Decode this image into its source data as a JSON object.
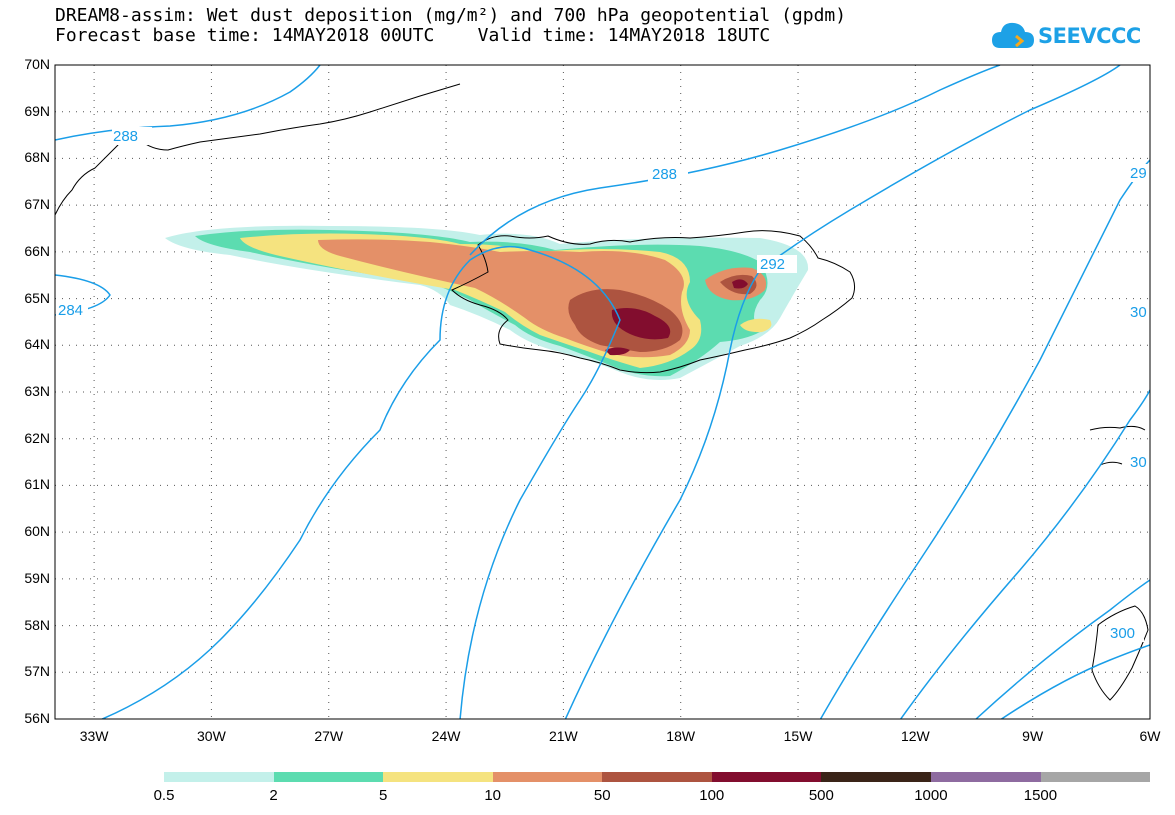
{
  "title": {
    "line1": "DREAM8-assim: Wet dust deposition (mg/m²) and 700 hPa geopotential (gpdm)",
    "line2": "Forecast base time: 14MAY2018 00UTC    Valid time: 14MAY2018 18UTC"
  },
  "logo": {
    "text": "SEEVCCC",
    "icon": "cloud-icon",
    "color": "#1da1e6"
  },
  "axes": {
    "lat_labels": [
      "70N",
      "69N",
      "68N",
      "67N",
      "66N",
      "65N",
      "64N",
      "63N",
      "62N",
      "61N",
      "60N",
      "59N",
      "58N",
      "57N",
      "56N"
    ],
    "lon_labels": [
      "33W",
      "30W",
      "27W",
      "24W",
      "21W",
      "18W",
      "15W",
      "12W",
      "9W",
      "6W"
    ],
    "lat_range": [
      56,
      70
    ],
    "lon_range": [
      -34,
      -6
    ],
    "grid": "dotted"
  },
  "contours": {
    "color": "#1a9ee8",
    "labels": [
      "288",
      "288",
      "288",
      "292",
      "284",
      "29",
      "30",
      "30",
      "300"
    ]
  },
  "colorbar": {
    "colors": [
      "#c3f0ea",
      "#5cdcb0",
      "#f5e37f",
      "#e49068",
      "#ad5440",
      "#820d2e",
      "#3a2418",
      "#8e6ba0",
      "#a6a6a6"
    ],
    "labels": [
      "0.5",
      "2",
      "5",
      "10",
      "50",
      "100",
      "500",
      "1000",
      "1500"
    ]
  }
}
